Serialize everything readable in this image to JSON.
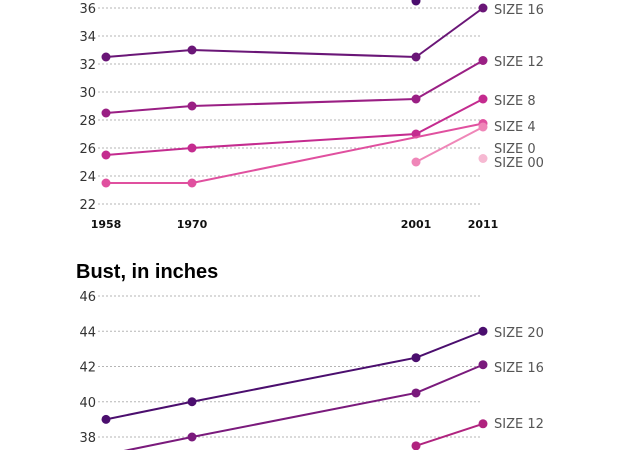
{
  "chart_data": [
    {
      "type": "line",
      "title": "",
      "x": [
        1958,
        1970,
        2001,
        2011
      ],
      "x_tick_labels": [
        "1958",
        "1970",
        "2001",
        "2011"
      ],
      "ylim": [
        22,
        36
      ],
      "y_ticks": [
        22,
        24,
        26,
        28,
        30,
        32,
        34,
        36
      ],
      "grid": true,
      "series": [
        {
          "name": "",
          "color": "#4b0e6e",
          "values": [
            null,
            null,
            36.5,
            null
          ]
        },
        {
          "name": "SIZE 16",
          "color": "#6a1677",
          "values": [
            32.5,
            33,
            32.5,
            36
          ]
        },
        {
          "name": "SIZE 12",
          "color": "#9a1f84",
          "values": [
            28.5,
            29,
            29.5,
            32.25
          ]
        },
        {
          "name": "SIZE 8",
          "color": "#c42b8f",
          "values": [
            25.5,
            26,
            27,
            29.5
          ]
        },
        {
          "name": "SIZE 4",
          "color": "#e0509f",
          "values": [
            23.5,
            23.5,
            null,
            27.75
          ]
        },
        {
          "name": "SIZE 0",
          "color": "#ef86b8",
          "values": [
            null,
            null,
            25,
            27.5
          ]
        },
        {
          "name": "SIZE 00",
          "color": "#f6b9d2",
          "values": [
            null,
            null,
            null,
            25.25
          ]
        }
      ]
    },
    {
      "type": "line",
      "title": "Bust, in inches",
      "x": [
        1958,
        1970,
        2001,
        2011
      ],
      "ylim": [
        37,
        46
      ],
      "y_ticks": [
        38,
        40,
        42,
        44,
        46
      ],
      "grid": true,
      "series": [
        {
          "name": "SIZE 20",
          "color": "#4b0e6e",
          "values": [
            39,
            40,
            42.5,
            44
          ]
        },
        {
          "name": "SIZE 16",
          "color": "#7a1a7c",
          "values": [
            37,
            38,
            40.5,
            42.1
          ]
        },
        {
          "name": "SIZE 12",
          "color": "#b0237f",
          "values": [
            null,
            null,
            37.5,
            38.75
          ]
        }
      ]
    }
  ]
}
